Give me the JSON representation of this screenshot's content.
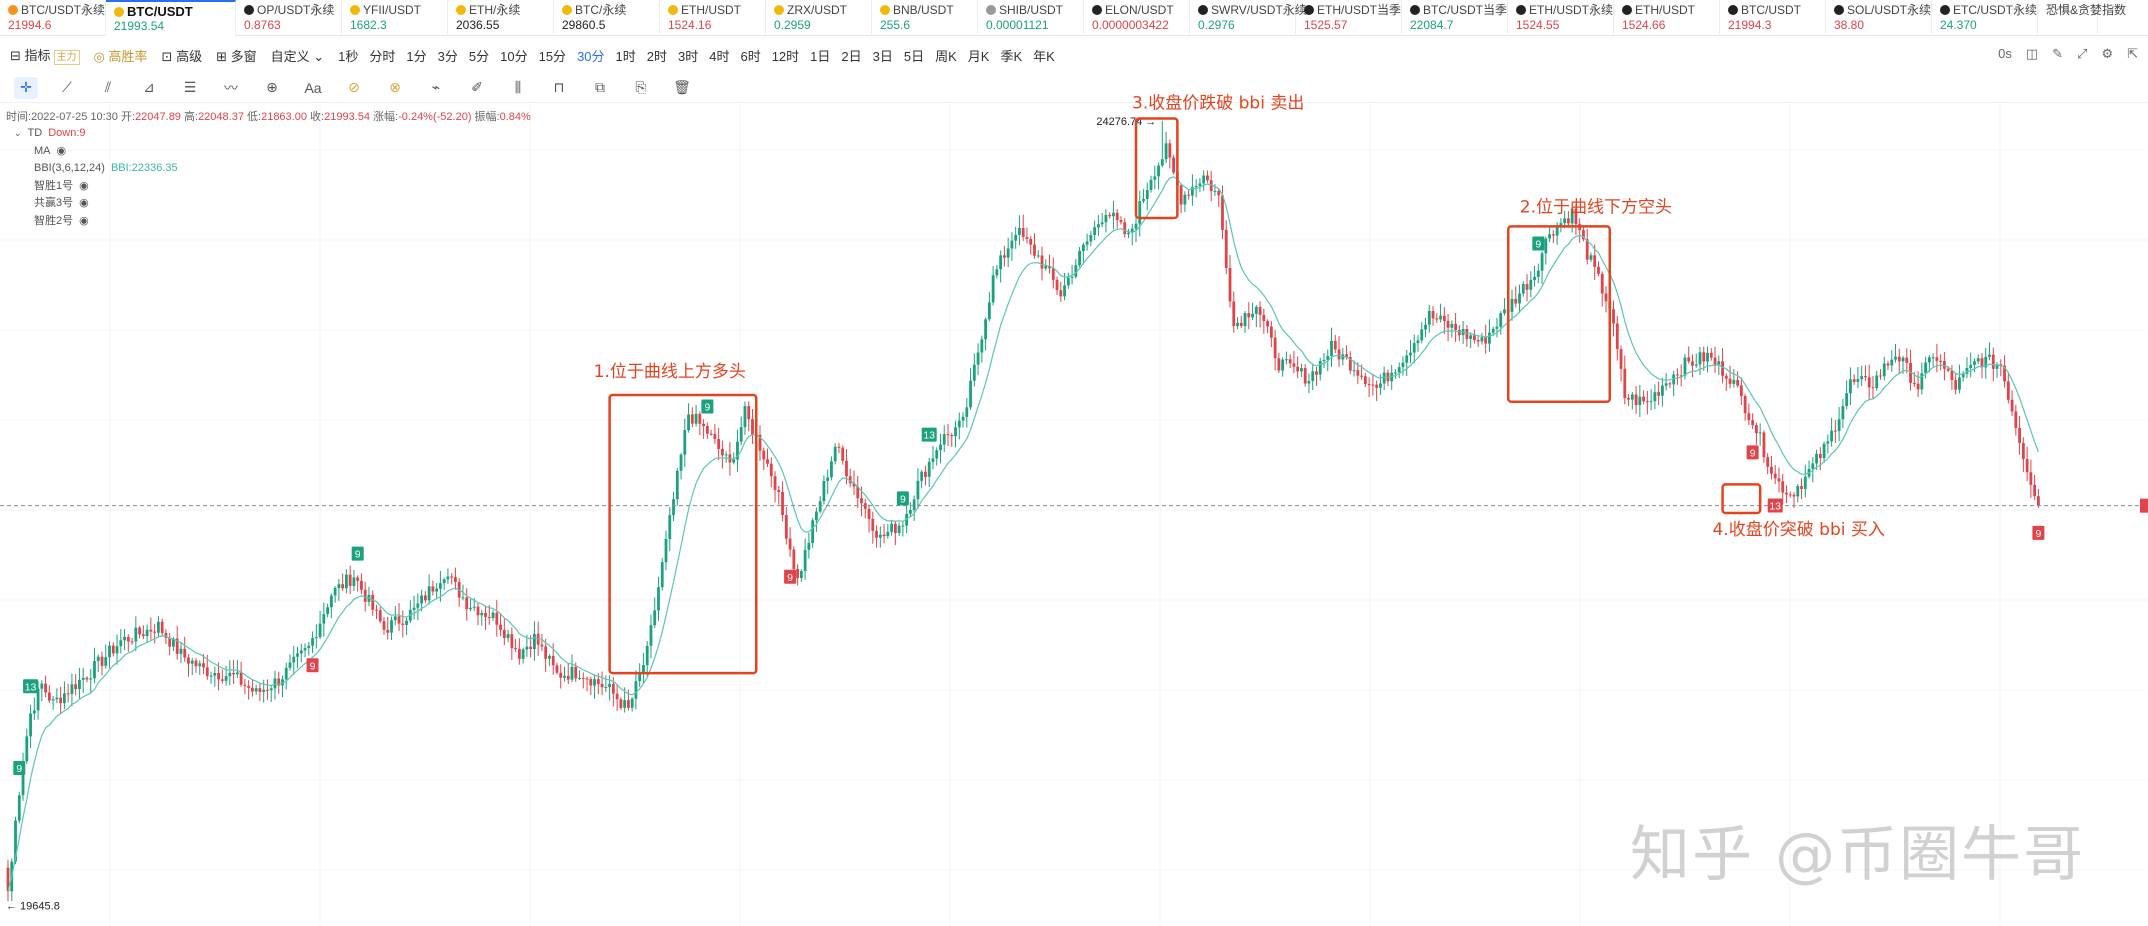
{
  "tickers": [
    {
      "name": "BTC/USDT永续",
      "price": "21994.6",
      "color": "down",
      "icon": "#f7931a"
    },
    {
      "name": "BTC/USDT",
      "price": "21993.54",
      "color": "up",
      "icon": "#f0b90b",
      "active": true
    },
    {
      "name": "OP/USDT永续",
      "price": "0.8763",
      "color": "down",
      "icon": "#222"
    },
    {
      "name": "YFII/USDT",
      "price": "1682.3",
      "color": "up",
      "icon": "#f0b90b"
    },
    {
      "name": "ETH/永续",
      "price": "2036.55",
      "color": "dark",
      "icon": "#f0b90b"
    },
    {
      "name": "BTC/永续",
      "price": "29860.5",
      "color": "dark",
      "icon": "#f0b90b"
    },
    {
      "name": "ETH/USDT",
      "price": "1524.16",
      "color": "down",
      "icon": "#f0b90b"
    },
    {
      "name": "ZRX/USDT",
      "price": "0.2959",
      "color": "up",
      "icon": "#f0b90b"
    },
    {
      "name": "BNB/USDT",
      "price": "255.6",
      "color": "up",
      "icon": "#f0b90b"
    },
    {
      "name": "SHIB/USDT",
      "price": "0.00001121",
      "color": "up",
      "icon": "#999"
    },
    {
      "name": "ELON/USDT",
      "price": "0.0000003422",
      "color": "down",
      "icon": "#222"
    },
    {
      "name": "SWRV/USDT永续",
      "price": "0.2976",
      "color": "up",
      "icon": "#222"
    },
    {
      "name": "ETH/USDT当季",
      "price": "1525.57",
      "color": "down",
      "icon": "#222"
    },
    {
      "name": "BTC/USDT当季",
      "price": "22084.7",
      "color": "up",
      "icon": "#222"
    },
    {
      "name": "ETH/USDT永续",
      "price": "1524.55",
      "color": "down",
      "icon": "#222"
    },
    {
      "name": "ETH/USDT",
      "price": "1524.66",
      "color": "down",
      "icon": "#222"
    },
    {
      "name": "BTC/USDT",
      "price": "21994.3",
      "color": "down",
      "icon": "#222"
    },
    {
      "name": "SOL/USDT永续",
      "price": "38.80",
      "color": "down",
      "icon": "#222"
    },
    {
      "name": "ETC/USDT永续",
      "price": "24.370",
      "color": "up",
      "icon": "#222"
    },
    {
      "name": "恐惧&贪婪指数",
      "price": "",
      "color": "dark",
      "icon": ""
    }
  ],
  "toolbar": {
    "indicator_label": "指标",
    "indicator_badge": "主力",
    "winrate_label": "高胜率",
    "advanced_label": "高级",
    "multiwindow_label": "多窗",
    "custom_label": "自定义",
    "intervals": [
      "1秒",
      "分时",
      "1分",
      "3分",
      "5分",
      "10分",
      "15分",
      "30分",
      "1时",
      "2时",
      "3时",
      "4时",
      "6时",
      "12时",
      "1日",
      "2日",
      "3日",
      "5日",
      "周K",
      "月K",
      "季K",
      "年K"
    ],
    "selected_interval": "30分",
    "right_value": "0s"
  },
  "drawing_tools": [
    "crosshair-icon",
    "line-icon",
    "channel-icon",
    "fib-icon",
    "parallel-icon",
    "wave-icon",
    "measure-icon",
    "text-icon",
    "magnet-icon",
    "lock-magnet-icon",
    "ruler-icon",
    "brush-icon",
    "compare-icon",
    "lock-icon",
    "copy-icon",
    "template-icon",
    "trash-icon"
  ],
  "ohlc": {
    "time_label": "时间:",
    "time": "2022-07-25 10:30",
    "open_label": "开:",
    "open": "22047.89",
    "high_label": "高:",
    "high": "22048.37",
    "low_label": "低:",
    "low": "21863.00",
    "close_label": "收:",
    "close": "21993.54",
    "change_label": "涨幅:",
    "change": "-0.24%(-52.20)",
    "amp_label": "振幅:",
    "amp": "0.84%"
  },
  "indicators": {
    "td": "TD",
    "td_value": "Down:9",
    "ma": "MA",
    "bbi": "BBI(3,6,12,24)",
    "bbi_value": "BBI:22336.35",
    "zs1": "智胜1号",
    "gy3": "共赢3号",
    "zs2": "智胜2号"
  },
  "chart_data": {
    "type": "candlestick",
    "symbol": "BTC/USDT",
    "interval": "30分",
    "ylim": [
      19500,
      24400
    ],
    "high_marker": 24276.74,
    "low_marker": 19645.8,
    "current_price": 21993.54,
    "bbi_color": "#59c7b5",
    "up_color": "#1aa27e",
    "down_color": "#e0434a",
    "anchors": [
      [
        0,
        19645.8
      ],
      [
        2,
        20120
      ],
      [
        4,
        20500
      ],
      [
        6,
        20760
      ],
      [
        9,
        20930
      ],
      [
        12,
        20820
      ],
      [
        16,
        20900
      ],
      [
        22,
        21010
      ],
      [
        30,
        21190
      ],
      [
        40,
        21280
      ],
      [
        46,
        21110
      ],
      [
        52,
        21020
      ],
      [
        60,
        20980
      ],
      [
        66,
        20880
      ],
      [
        72,
        20960
      ],
      [
        80,
        21150
      ],
      [
        86,
        21470
      ],
      [
        92,
        21580
      ],
      [
        100,
        21260
      ],
      [
        108,
        21370
      ],
      [
        116,
        21600
      ],
      [
        122,
        21420
      ],
      [
        130,
        21320
      ],
      [
        136,
        21120
      ],
      [
        140,
        21210
      ],
      [
        146,
        20990
      ],
      [
        152,
        21010
      ],
      [
        160,
        20900
      ],
      [
        165,
        20780
      ],
      [
        170,
        21120
      ],
      [
        176,
        21900
      ],
      [
        181,
        22540
      ],
      [
        186,
        22430
      ],
      [
        192,
        22230
      ],
      [
        196,
        22540
      ],
      [
        200,
        22350
      ],
      [
        204,
        22130
      ],
      [
        210,
        21550
      ],
      [
        214,
        21870
      ],
      [
        220,
        22350
      ],
      [
        226,
        22060
      ],
      [
        232,
        21800
      ],
      [
        238,
        21900
      ],
      [
        242,
        22120
      ],
      [
        248,
        22380
      ],
      [
        254,
        22480
      ],
      [
        262,
        23340
      ],
      [
        268,
        23630
      ],
      [
        274,
        23470
      ],
      [
        280,
        23250
      ],
      [
        286,
        23520
      ],
      [
        292,
        23750
      ],
      [
        298,
        23580
      ],
      [
        304,
        23950
      ],
      [
        308,
        24100
      ],
      [
        312,
        23820
      ],
      [
        318,
        23950
      ],
      [
        322,
        23820
      ],
      [
        326,
        23060
      ],
      [
        332,
        23190
      ],
      [
        338,
        22840
      ],
      [
        346,
        22750
      ],
      [
        352,
        22930
      ],
      [
        358,
        22820
      ],
      [
        364,
        22690
      ],
      [
        372,
        22900
      ],
      [
        378,
        23120
      ],
      [
        384,
        23050
      ],
      [
        392,
        22960
      ],
      [
        400,
        23200
      ],
      [
        406,
        23370
      ],
      [
        410,
        23620
      ],
      [
        416,
        23730
      ],
      [
        420,
        23490
      ],
      [
        426,
        23170
      ],
      [
        430,
        22640
      ],
      [
        436,
        22600
      ],
      [
        440,
        22710
      ],
      [
        446,
        22830
      ],
      [
        452,
        22880
      ],
      [
        458,
        22760
      ],
      [
        464,
        22500
      ],
      [
        470,
        22150
      ],
      [
        474,
        22060
      ],
      [
        478,
        22160
      ],
      [
        484,
        22360
      ],
      [
        490,
        22720
      ],
      [
        496,
        22720
      ],
      [
        502,
        22900
      ],
      [
        508,
        22700
      ],
      [
        512,
        22900
      ],
      [
        518,
        22700
      ],
      [
        524,
        22860
      ],
      [
        530,
        22830
      ],
      [
        536,
        22300
      ],
      [
        540,
        21993.5
      ]
    ],
    "td_labels": [
      {
        "i": 3,
        "text": "9",
        "side": "up"
      },
      {
        "i": 6,
        "text": "13",
        "side": "up"
      },
      {
        "i": 81,
        "text": "9",
        "side": "down"
      },
      {
        "i": 93,
        "text": "9",
        "side": "up"
      },
      {
        "i": 186,
        "text": "9",
        "side": "up"
      },
      {
        "i": 208,
        "text": "9",
        "side": "down"
      },
      {
        "i": 238,
        "text": "9",
        "side": "up"
      },
      {
        "i": 245,
        "text": "13",
        "side": "up"
      },
      {
        "i": 407,
        "text": "9",
        "side": "up"
      },
      {
        "i": 464,
        "text": "9",
        "side": "down"
      },
      {
        "i": 470,
        "text": "13",
        "side": "down"
      },
      {
        "i": 540,
        "text": "9",
        "side": "down"
      }
    ],
    "annotations": [
      {
        "text": "1.位于曲线上方多头",
        "i0": 160,
        "i1": 199,
        "y0": 22650,
        "y1": 21000
      },
      {
        "text": "2.位于曲线下方空头",
        "i0": 399,
        "i1": 426,
        "y0": 23650,
        "y1": 22610
      },
      {
        "text": "3.收盘价跌破 bbi 卖出",
        "i0": 300,
        "i1": 311,
        "y0": 24290,
        "y1": 23700
      },
      {
        "text": "4.收盘价突破 bbi 买入",
        "i0": 456,
        "i1": 466,
        "y0": 22120,
        "y1": 21950
      }
    ],
    "watermark": "知乎 @币圈牛哥"
  }
}
